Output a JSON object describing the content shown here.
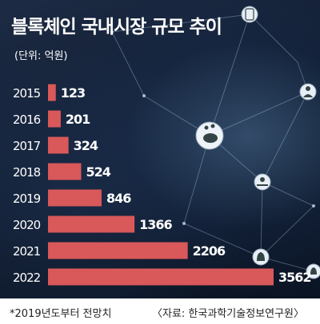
{
  "title": "블록체인 국내시장 규모 추이",
  "unit": "(단위: 억원)",
  "footnote": "*2019년도부터 전망치",
  "source": "〈자료: 한국과학기술정보연구원〉",
  "colors": {
    "bar": "#d9585a",
    "background": "#0e1a2d",
    "text": "#ffffff"
  },
  "icons": [
    "bitcoin-icon",
    "piggy-bank-icon",
    "person-icon",
    "money-bag-icon",
    "hand-coin-icon",
    "dollar-bag-icon"
  ],
  "chart_data": {
    "type": "bar",
    "orientation": "horizontal",
    "categories": [
      "2015",
      "2016",
      "2017",
      "2018",
      "2019",
      "2020",
      "2021",
      "2022"
    ],
    "values": [
      123,
      201,
      324,
      524,
      846,
      1366,
      2206,
      3562
    ],
    "value_labels": [
      "123",
      "201",
      "324",
      "524",
      "846",
      "1366",
      "2206",
      "3562"
    ],
    "title": "블록체인 국내시장 규모 추이",
    "unit": "(단위: 억원)",
    "xlabel": "",
    "ylabel": "",
    "grid": false,
    "legend": "none"
  }
}
